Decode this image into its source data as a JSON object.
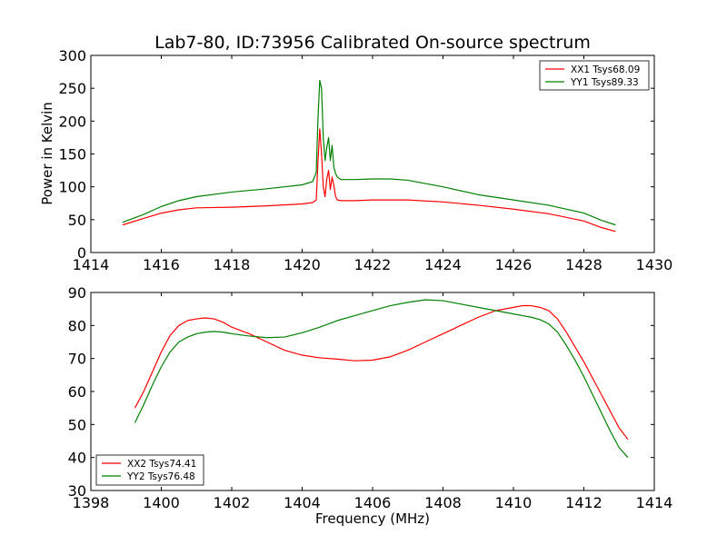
{
  "chart_data": [
    {
      "type": "line",
      "title": "Lab7-80, ID:73956 Calibrated On-source spectrum",
      "xlabel": "",
      "ylabel": "Power in Kelvin",
      "xlim": [
        1414,
        1430
      ],
      "ylim": [
        0,
        300
      ],
      "xticks": [
        1414,
        1416,
        1418,
        1420,
        1422,
        1424,
        1426,
        1428,
        1430
      ],
      "yticks": [
        0,
        50,
        100,
        150,
        200,
        250,
        300
      ],
      "grid": false,
      "legend": "top-right",
      "series": [
        {
          "name": "XX1 Tsys68.09",
          "color": "#ff0000",
          "x": [
            1414.9,
            1415.5,
            1416.0,
            1416.5,
            1417.0,
            1418.0,
            1419.0,
            1420.0,
            1420.3,
            1420.4,
            1420.45,
            1420.5,
            1420.55,
            1420.6,
            1420.65,
            1420.7,
            1420.75,
            1420.8,
            1420.85,
            1420.9,
            1420.95,
            1421.0,
            1421.1,
            1421.5,
            1422.0,
            1422.5,
            1423.0,
            1424.0,
            1425.0,
            1426.0,
            1427.0,
            1428.0,
            1428.5,
            1428.9
          ],
          "y": [
            42,
            52,
            60,
            65,
            68,
            69,
            71,
            74,
            76,
            80,
            140,
            188,
            150,
            100,
            85,
            112,
            125,
            96,
            115,
            102,
            85,
            80,
            79,
            79,
            80,
            80,
            80,
            77,
            72,
            66,
            59,
            48,
            38,
            32
          ]
        },
        {
          "name": "YY1 Tsys89.33",
          "color": "#008000",
          "x": [
            1414.9,
            1415.5,
            1416.0,
            1416.5,
            1417.0,
            1418.0,
            1419.0,
            1420.0,
            1420.3,
            1420.4,
            1420.45,
            1420.5,
            1420.55,
            1420.6,
            1420.65,
            1420.7,
            1420.75,
            1420.8,
            1420.85,
            1420.9,
            1420.95,
            1421.0,
            1421.1,
            1421.5,
            1422.0,
            1422.5,
            1423.0,
            1424.0,
            1425.0,
            1426.0,
            1427.0,
            1428.0,
            1428.5,
            1428.9
          ],
          "y": [
            46,
            58,
            70,
            79,
            85,
            92,
            97,
            103,
            108,
            122,
            205,
            262,
            250,
            175,
            140,
            160,
            175,
            140,
            163,
            130,
            120,
            115,
            111,
            111,
            112,
            112,
            110,
            100,
            88,
            80,
            72,
            60,
            49,
            42
          ]
        }
      ]
    },
    {
      "type": "line",
      "title": "",
      "xlabel": "Frequency (MHz)",
      "ylabel": "",
      "xlim": [
        1398,
        1414
      ],
      "ylim": [
        30,
        90
      ],
      "xticks": [
        1398,
        1400,
        1402,
        1404,
        1406,
        1408,
        1410,
        1412,
        1414
      ],
      "yticks": [
        30,
        40,
        50,
        60,
        70,
        80,
        90
      ],
      "grid": false,
      "legend": "bottom-left",
      "series": [
        {
          "name": "XX2 Tsys74.41",
          "color": "#ff0000",
          "x": [
            1399.25,
            1399.5,
            1399.75,
            1400.0,
            1400.25,
            1400.5,
            1400.75,
            1401.0,
            1401.25,
            1401.5,
            1401.75,
            1402.0,
            1402.5,
            1403.0,
            1403.5,
            1404.0,
            1404.5,
            1405.0,
            1405.5,
            1406.0,
            1406.5,
            1407.0,
            1407.5,
            1408.0,
            1408.5,
            1409.0,
            1409.5,
            1410.0,
            1410.25,
            1410.5,
            1410.75,
            1411.0,
            1411.25,
            1411.5,
            1411.75,
            1412.0,
            1412.25,
            1412.5,
            1412.75,
            1413.0,
            1413.25
          ],
          "y": [
            55,
            60,
            66,
            72,
            77,
            80,
            81.5,
            82,
            82.3,
            82,
            81,
            79.5,
            77.5,
            75,
            72.5,
            71,
            70.2,
            69.8,
            69.3,
            69.5,
            70.5,
            72.5,
            75,
            77.5,
            80,
            82.5,
            84.5,
            85.5,
            86,
            86,
            85.5,
            84.5,
            82,
            78,
            73.5,
            69,
            64,
            59,
            54,
            49,
            45.5
          ]
        },
        {
          "name": "YY2 Tsys76.48",
          "color": "#008000",
          "x": [
            1399.25,
            1399.5,
            1399.75,
            1400.0,
            1400.25,
            1400.5,
            1400.75,
            1401.0,
            1401.25,
            1401.5,
            1401.75,
            1402.0,
            1402.5,
            1403.0,
            1403.5,
            1404.0,
            1404.5,
            1405.0,
            1405.5,
            1406.0,
            1406.5,
            1407.0,
            1407.5,
            1408.0,
            1408.5,
            1409.0,
            1409.5,
            1410.0,
            1410.25,
            1410.5,
            1410.75,
            1411.0,
            1411.25,
            1411.5,
            1411.75,
            1412.0,
            1412.25,
            1412.5,
            1412.75,
            1413.0,
            1413.25
          ],
          "y": [
            50.5,
            56,
            62,
            67.5,
            72,
            75,
            76.5,
            77.5,
            78,
            78.2,
            78,
            77.5,
            76.8,
            76.3,
            76.5,
            77.8,
            79.5,
            81.5,
            83,
            84.5,
            86,
            87,
            87.8,
            87.5,
            86.5,
            85.5,
            84.5,
            83.5,
            83,
            82.5,
            81.8,
            80.5,
            78,
            74,
            69.5,
            64.5,
            59,
            53.5,
            48,
            43,
            40
          ]
        }
      ]
    }
  ]
}
